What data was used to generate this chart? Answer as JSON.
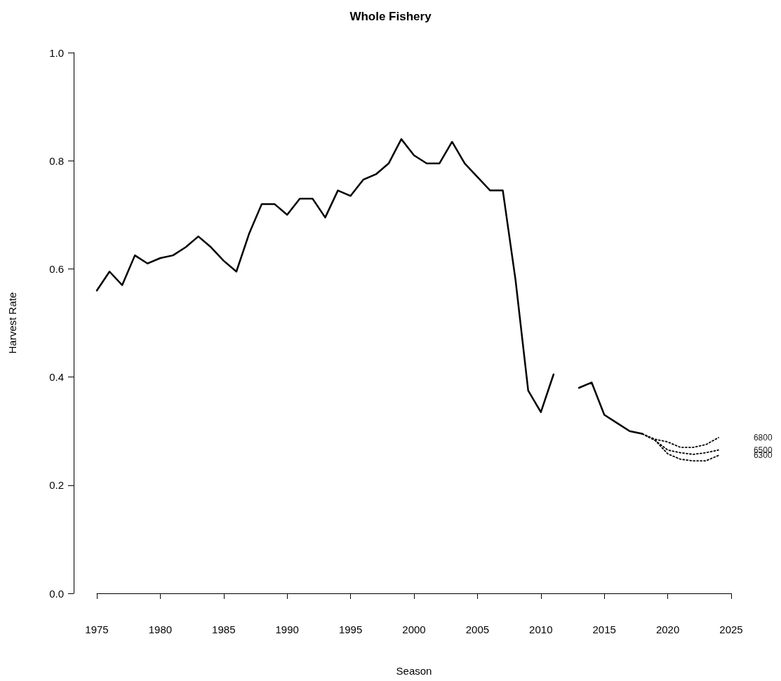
{
  "chart_data": {
    "type": "line",
    "title": "Whole Fishery",
    "xlabel": "Season",
    "ylabel": "Harvest Rate",
    "xlim": [
      1975,
      2025
    ],
    "xticks": [
      1975,
      1980,
      1985,
      1990,
      1995,
      2000,
      2005,
      2010,
      2015,
      2020,
      2025
    ],
    "ylim": [
      0,
      1
    ],
    "yticks": [
      {
        "value": 0,
        "label": "0.0"
      },
      0.2,
      0.4,
      0.6,
      0.8,
      {
        "value": 1,
        "label": "1.0"
      }
    ],
    "grid": false,
    "legend": false,
    "marker": "none",
    "series": [
      {
        "color": "#000000",
        "line_style": "solid",
        "x": [
          1975,
          1976,
          1977,
          1978,
          1979,
          1980,
          1981,
          1982,
          1983,
          1984,
          1985,
          1986,
          1987,
          1988,
          1989,
          1990,
          1991,
          1992,
          1993,
          1994,
          1995,
          1996,
          1997,
          1998,
          1999,
          2000,
          2001,
          2002,
          2003,
          2004,
          2005,
          2006,
          2007,
          2008,
          2009,
          2010,
          2011,
          2012,
          2013,
          2014,
          2015,
          2016,
          2017,
          2018
        ],
        "values": [
          0.56,
          0.595,
          0.57,
          0.625,
          0.61,
          0.62,
          0.625,
          0.64,
          0.66,
          0.64,
          0.615,
          0.595,
          0.665,
          0.72,
          0.72,
          0.7,
          0.73,
          0.73,
          0.695,
          0.745,
          0.735,
          0.765,
          0.775,
          0.795,
          0.84,
          0.81,
          0.795,
          0.795,
          0.835,
          0.795,
          0.77,
          0.745,
          0.745,
          0.58,
          0.375,
          0.335,
          0.405,
          null,
          0.38,
          0.39,
          0.33,
          0.315,
          0.3,
          0.295
        ]
      },
      {
        "name": "6800",
        "color": "#000000",
        "line_style": "dotted",
        "x": [
          2018,
          2019,
          2020,
          2021,
          2022,
          2023,
          2024
        ],
        "values": [
          0.295,
          0.285,
          0.28,
          0.27,
          0.27,
          0.275,
          0.288
        ]
      },
      {
        "name": "6500",
        "color": "#000000",
        "line_style": "dotted",
        "x": [
          2018,
          2019,
          2020,
          2021,
          2022,
          2023,
          2024
        ],
        "values": [
          0.295,
          0.283,
          0.265,
          0.26,
          0.257,
          0.26,
          0.265
        ]
      },
      {
        "name": "6300",
        "color": "#000000",
        "line_style": "dotted",
        "x": [
          2018,
          2019,
          2020,
          2021,
          2022,
          2023,
          2024
        ],
        "values": [
          0.295,
          0.283,
          0.258,
          0.248,
          0.245,
          0.245,
          0.255
        ]
      }
    ]
  }
}
